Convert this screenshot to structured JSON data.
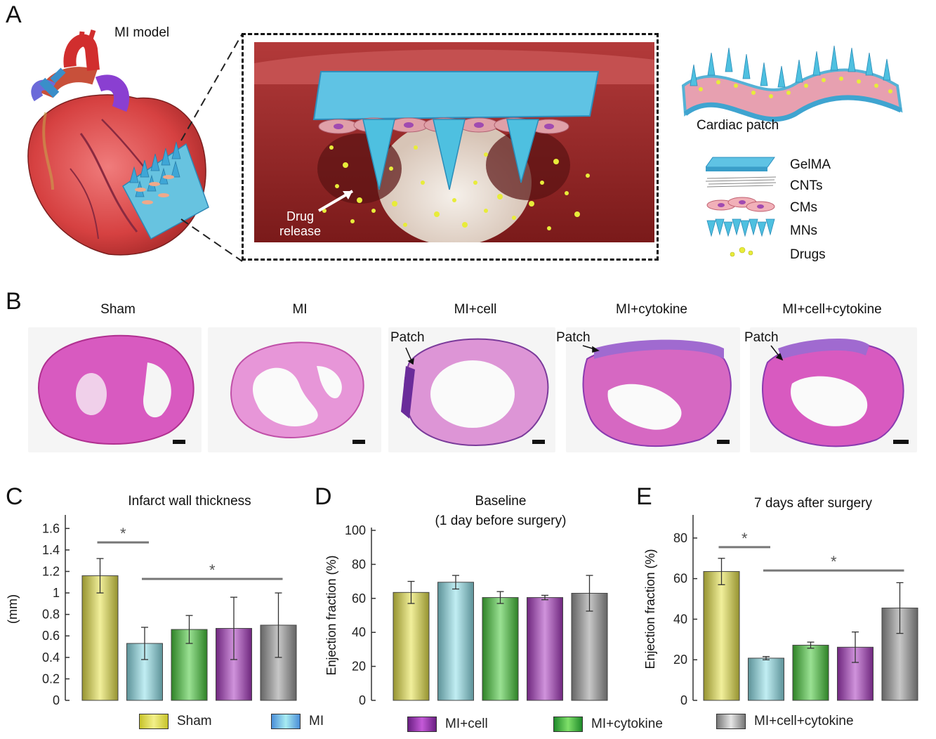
{
  "panel_a": {
    "letter": "A",
    "mi_model_label": "MI model",
    "drug_release_label": [
      "Drug",
      "release"
    ],
    "cardiac_patch_label": "Cardiac patch",
    "components": [
      {
        "icon": "gelma-layer-icon",
        "label": "GelMA"
      },
      {
        "icon": "cnt-lines-icon",
        "label": "CNTs"
      },
      {
        "icon": "cardiomyocytes-icon",
        "label": "CMs"
      },
      {
        "icon": "microneedles-icon",
        "label": "MNs"
      },
      {
        "icon": "drug-dots-icon",
        "label": "Drugs"
      }
    ]
  },
  "panel_b": {
    "letter": "B",
    "sections": [
      {
        "title": "Sham",
        "patch_label": ""
      },
      {
        "title": "MI",
        "patch_label": ""
      },
      {
        "title": "MI+cell",
        "patch_label": "Patch"
      },
      {
        "title": "MI+cytokine",
        "patch_label": "Patch"
      },
      {
        "title": "MI+cell+cytokine",
        "patch_label": "Patch"
      }
    ]
  },
  "legend": [
    {
      "label": "Sham",
      "color": "#e6e24a"
    },
    {
      "label": "MI",
      "color": "#8fe0ea"
    },
    {
      "label": "MI+cell",
      "color": "#a93ac0"
    },
    {
      "label": "MI+cytokine",
      "color": "#47c83a"
    },
    {
      "label": "MI+cell+cytokine",
      "color": "#9a9a9a"
    }
  ],
  "chart_data": [
    {
      "panel": "C",
      "type": "bar",
      "title": "Infarct wall thickness",
      "ylabel": "(mm)",
      "ylim": [
        0,
        1.7
      ],
      "yticks": [
        "0",
        "0.2",
        "0.4",
        "0.6",
        "0.8",
        "1",
        "1.2",
        "1.4",
        "1.6"
      ],
      "categories": [
        "Sham",
        "MI",
        "MI+cytokine",
        "MI+cell",
        "MI+cell+cytokine"
      ],
      "colors": [
        "#e6e24a",
        "#8fe0ea",
        "#47c83a",
        "#a93ac0",
        "#9a9a9a"
      ],
      "values": [
        1.16,
        0.53,
        0.66,
        0.67,
        0.7
      ],
      "errors": [
        0.16,
        0.15,
        0.13,
        0.29,
        0.3
      ],
      "significance": [
        {
          "label": "*",
          "from": 0,
          "to": 1,
          "y": 1.47
        },
        {
          "label": "*",
          "from": 1,
          "to": 4,
          "y": 1.13
        }
      ]
    },
    {
      "panel": "D",
      "type": "bar",
      "title": "Baseline",
      "subtitle": "(1 day before surgery)",
      "ylabel": "Enjection fraction (%)",
      "ylim": [
        0,
        100
      ],
      "yticks": [
        "0",
        "20",
        "40",
        "60",
        "80",
        "100"
      ],
      "categories": [
        "Sham",
        "MI",
        "MI+cytokine",
        "MI+cell",
        "MI+cell+cytokine"
      ],
      "colors": [
        "#e6e24a",
        "#8fe0ea",
        "#47c83a",
        "#a93ac0",
        "#9a9a9a"
      ],
      "values": [
        63.5,
        69.5,
        60.5,
        60.5,
        63.0
      ],
      "errors": [
        6.5,
        4.0,
        3.5,
        1.3,
        10.5
      ],
      "significance": []
    },
    {
      "panel": "E",
      "type": "bar",
      "title": "7 days after surgery",
      "ylabel": "Enjection fraction (%)",
      "ylim": [
        0,
        90
      ],
      "yticks": [
        "0",
        "20",
        "40",
        "60",
        "80"
      ],
      "categories": [
        "Sham",
        "MI",
        "MI+cytokine",
        "MI+cell",
        "MI+cell+cytokine"
      ],
      "colors": [
        "#e6e24a",
        "#8fe0ea",
        "#47c83a",
        "#a93ac0",
        "#9a9a9a"
      ],
      "values": [
        63.5,
        20.8,
        27.2,
        26.2,
        45.5
      ],
      "errors": [
        6.5,
        0.8,
        1.5,
        7.5,
        12.5
      ],
      "significance": [
        {
          "label": "*",
          "from": 0,
          "to": 1,
          "y": 75.5
        },
        {
          "label": "*",
          "from": 1,
          "to": 4,
          "y": 64
        }
      ]
    }
  ]
}
